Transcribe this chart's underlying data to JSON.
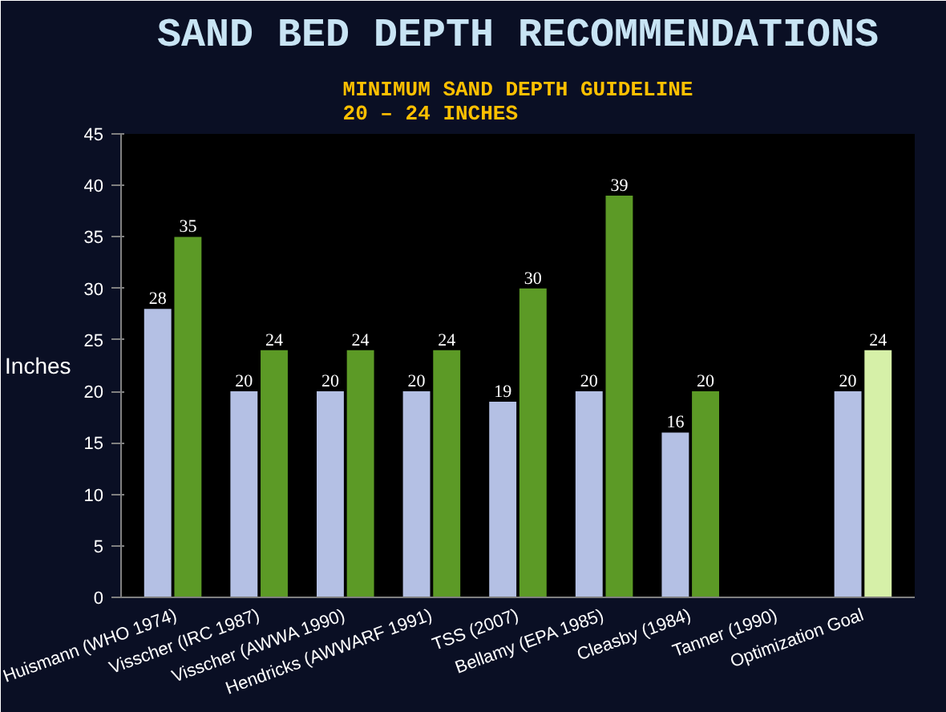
{
  "chart_data": {
    "type": "bar",
    "title": "SAND BED DEPTH RECOMMENDATIONS",
    "subtitle": "MINIMUM SAND DEPTH GUIDELINE\n20 – 24 INCHES",
    "ylabel": "Inches",
    "categories": [
      "Huismann (WHO 1974)",
      "Visscher (IRC 1987)",
      "Visscher (AWWA 1990)",
      "Hendricks (AWWARF 1991)",
      "TSS (2007)",
      "Bellamy (EPA 1985)",
      "Cleasby (1984)",
      "Tanner (1990)",
      "Optimization Goal"
    ],
    "series": [
      {
        "color": "#b4c0e4",
        "values": [
          28,
          20,
          20,
          20,
          19,
          20,
          16,
          null,
          20
        ]
      },
      {
        "color": "#5c9a26",
        "colors": [
          "#5c9a26",
          "#5c9a26",
          "#5c9a26",
          "#5c9a26",
          "#5c9a26",
          "#5c9a26",
          "#5c9a26",
          "#5c9a26",
          "#d6f0a8"
        ],
        "values": [
          35,
          24,
          24,
          24,
          30,
          39,
          20,
          null,
          24
        ]
      }
    ],
    "ylim": [
      0,
      45
    ],
    "yticks": [
      0,
      5,
      10,
      15,
      20,
      25,
      30,
      35,
      40,
      45
    ],
    "grid": false,
    "data_labels": true
  }
}
